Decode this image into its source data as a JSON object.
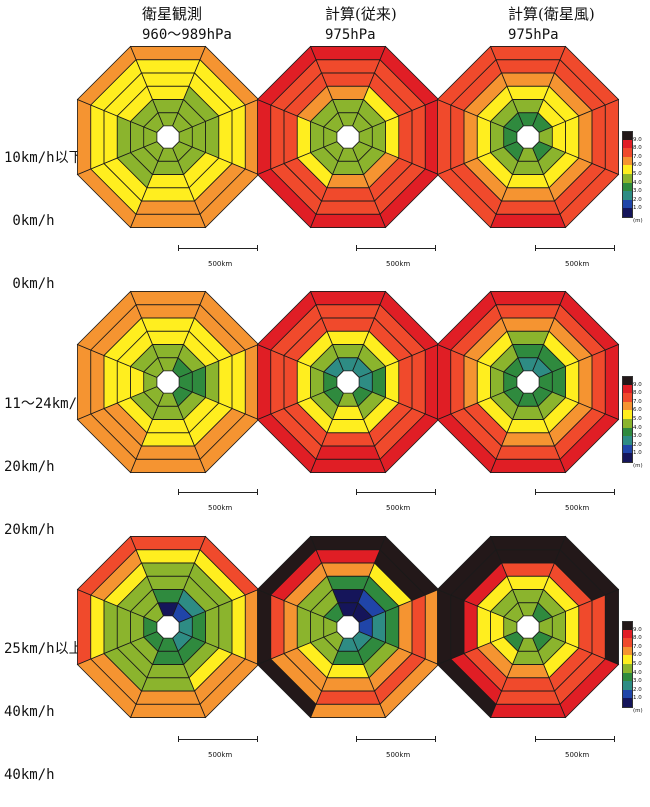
{
  "columns": [
    {
      "title": "衛星観測",
      "pressure": "960〜989hPa"
    },
    {
      "title": "計算(従来)",
      "pressure": "975hPa"
    },
    {
      "title": "計算(衛星風)",
      "pressure": "975hPa"
    }
  ],
  "rows": [
    {
      "lines": [
        "10km/h以下",
        " 0km/h",
        " 0km/h"
      ]
    },
    {
      "lines": [
        "11〜24km/h",
        "20km/h",
        "20km/h"
      ]
    },
    {
      "lines": [
        "25km/h以上",
        "40km/h",
        "40km/h"
      ]
    }
  ],
  "scale_label": "500km",
  "legend": {
    "ticks": [
      "9.0",
      "8.0",
      "7.0",
      "6.0",
      "5.0",
      "4.0",
      "3.0",
      "2.0",
      "1.0"
    ],
    "unit": "(m)",
    "colors": [
      "#231819",
      "#e01e25",
      "#f04a2c",
      "#f59431",
      "#ffee1f",
      "#8bb42d",
      "#2f8a3e",
      "#2e8c84",
      "#2045a8",
      "#15155a"
    ]
  },
  "chart_data": [
    {
      "type": "heatmap",
      "row": 0,
      "col": 0,
      "description": "grid rings x 8 sectors, wave height class index (0=<1.0m dark navy ... 9=>9.0m)",
      "grid": [
        [
          4,
          4,
          4,
          4,
          4,
          4,
          4,
          4
        ],
        [
          4,
          4,
          4,
          4,
          4,
          4,
          4,
          4
        ],
        [
          5,
          4,
          4,
          5,
          5,
          4,
          4,
          5
        ],
        [
          5,
          5,
          5,
          5,
          5,
          5,
          5,
          5
        ],
        [
          5,
          5,
          5,
          6,
          6,
          5,
          5,
          5
        ],
        [
          6,
          6,
          6,
          6,
          6,
          6,
          6,
          6
        ]
      ]
    },
    {
      "type": "heatmap",
      "row": 0,
      "col": 1,
      "grid": [
        [
          4,
          4,
          4,
          4,
          4,
          4,
          4,
          4
        ],
        [
          4,
          4,
          4,
          4,
          4,
          4,
          4,
          4
        ],
        [
          6,
          5,
          5,
          6,
          6,
          5,
          5,
          6
        ],
        [
          7,
          7,
          7,
          7,
          7,
          7,
          7,
          7
        ],
        [
          7,
          7,
          7,
          7,
          7,
          7,
          7,
          7
        ],
        [
          8,
          8,
          8,
          8,
          8,
          8,
          8,
          8
        ]
      ]
    },
    {
      "type": "heatmap",
      "row": 0,
      "col": 2,
      "grid": [
        [
          3,
          3,
          4,
          3,
          4,
          3,
          3,
          3
        ],
        [
          4,
          5,
          5,
          4,
          4,
          4,
          4,
          4
        ],
        [
          5,
          5,
          5,
          5,
          5,
          5,
          5,
          5
        ],
        [
          6,
          6,
          6,
          6,
          6,
          6,
          6,
          6
        ],
        [
          7,
          7,
          7,
          7,
          7,
          7,
          7,
          7
        ],
        [
          7,
          7,
          7,
          7,
          8,
          7,
          7,
          7
        ]
      ]
    },
    {
      "type": "heatmap",
      "row": 1,
      "col": 0,
      "grid": [
        [
          4,
          3,
          3,
          3,
          4,
          4,
          4,
          4
        ],
        [
          4,
          4,
          3,
          4,
          4,
          4,
          5,
          4
        ],
        [
          5,
          5,
          4,
          5,
          5,
          5,
          5,
          5
        ],
        [
          5,
          5,
          5,
          5,
          5,
          6,
          5,
          5
        ],
        [
          6,
          6,
          5,
          6,
          6,
          6,
          6,
          6
        ],
        [
          6,
          6,
          6,
          6,
          6,
          6,
          6,
          6
        ]
      ]
    },
    {
      "type": "heatmap",
      "row": 1,
      "col": 1,
      "grid": [
        [
          2,
          2,
          2,
          3,
          4,
          3,
          3,
          2
        ],
        [
          4,
          4,
          3,
          4,
          5,
          4,
          4,
          4
        ],
        [
          5,
          5,
          5,
          5,
          5,
          5,
          5,
          5
        ],
        [
          7,
          7,
          7,
          7,
          7,
          7,
          7,
          7
        ],
        [
          7,
          7,
          7,
          7,
          8,
          7,
          7,
          7
        ],
        [
          8,
          8,
          8,
          8,
          8,
          8,
          8,
          8
        ]
      ]
    },
    {
      "type": "heatmap",
      "row": 1,
      "col": 2,
      "grid": [
        [
          2,
          2,
          3,
          3,
          3,
          3,
          3,
          3
        ],
        [
          3,
          3,
          3,
          4,
          4,
          4,
          4,
          4
        ],
        [
          4,
          5,
          5,
          5,
          5,
          5,
          5,
          5
        ],
        [
          6,
          6,
          6,
          6,
          6,
          7,
          6,
          6
        ],
        [
          7,
          7,
          7,
          7,
          7,
          7,
          7,
          7
        ],
        [
          8,
          8,
          8,
          8,
          8,
          8,
          8,
          8
        ]
      ]
    },
    {
      "type": "heatmap",
      "row": 2,
      "col": 0,
      "grid": [
        [
          0,
          1,
          2,
          2,
          3,
          3,
          3,
          4
        ],
        [
          3,
          2,
          3,
          3,
          3,
          4,
          4,
          4
        ],
        [
          4,
          4,
          4,
          4,
          4,
          4,
          4,
          4
        ],
        [
          4,
          4,
          4,
          5,
          4,
          4,
          4,
          5
        ],
        [
          5,
          5,
          5,
          6,
          6,
          6,
          5,
          6
        ],
        [
          7,
          7,
          6,
          6,
          6,
          6,
          7,
          7
        ]
      ]
    },
    {
      "type": "heatmap",
      "row": 2,
      "col": 1,
      "grid": [
        [
          0,
          0,
          1,
          2,
          2,
          4,
          4,
          3
        ],
        [
          0,
          1,
          2,
          3,
          3,
          4,
          4,
          4
        ],
        [
          3,
          3,
          3,
          4,
          5,
          5,
          4,
          4
        ],
        [
          6,
          5,
          6,
          6,
          6,
          6,
          6,
          6
        ],
        [
          8,
          9,
          7,
          7,
          7,
          6,
          7,
          8
        ],
        [
          9,
          9,
          6,
          6,
          6,
          9,
          9,
          9
        ]
      ]
    },
    {
      "type": "heatmap",
      "row": 2,
      "col": 2,
      "grid": [
        [
          4,
          3,
          4,
          3,
          4,
          3,
          4,
          4
        ],
        [
          4,
          4,
          4,
          4,
          4,
          5,
          5,
          4
        ],
        [
          5,
          5,
          5,
          5,
          6,
          6,
          5,
          5
        ],
        [
          7,
          7,
          7,
          7,
          7,
          7,
          8,
          8
        ],
        [
          9,
          9,
          7,
          7,
          7,
          8,
          9,
          9
        ],
        [
          9,
          9,
          9,
          8,
          8,
          9,
          9,
          9
        ]
      ]
    }
  ]
}
